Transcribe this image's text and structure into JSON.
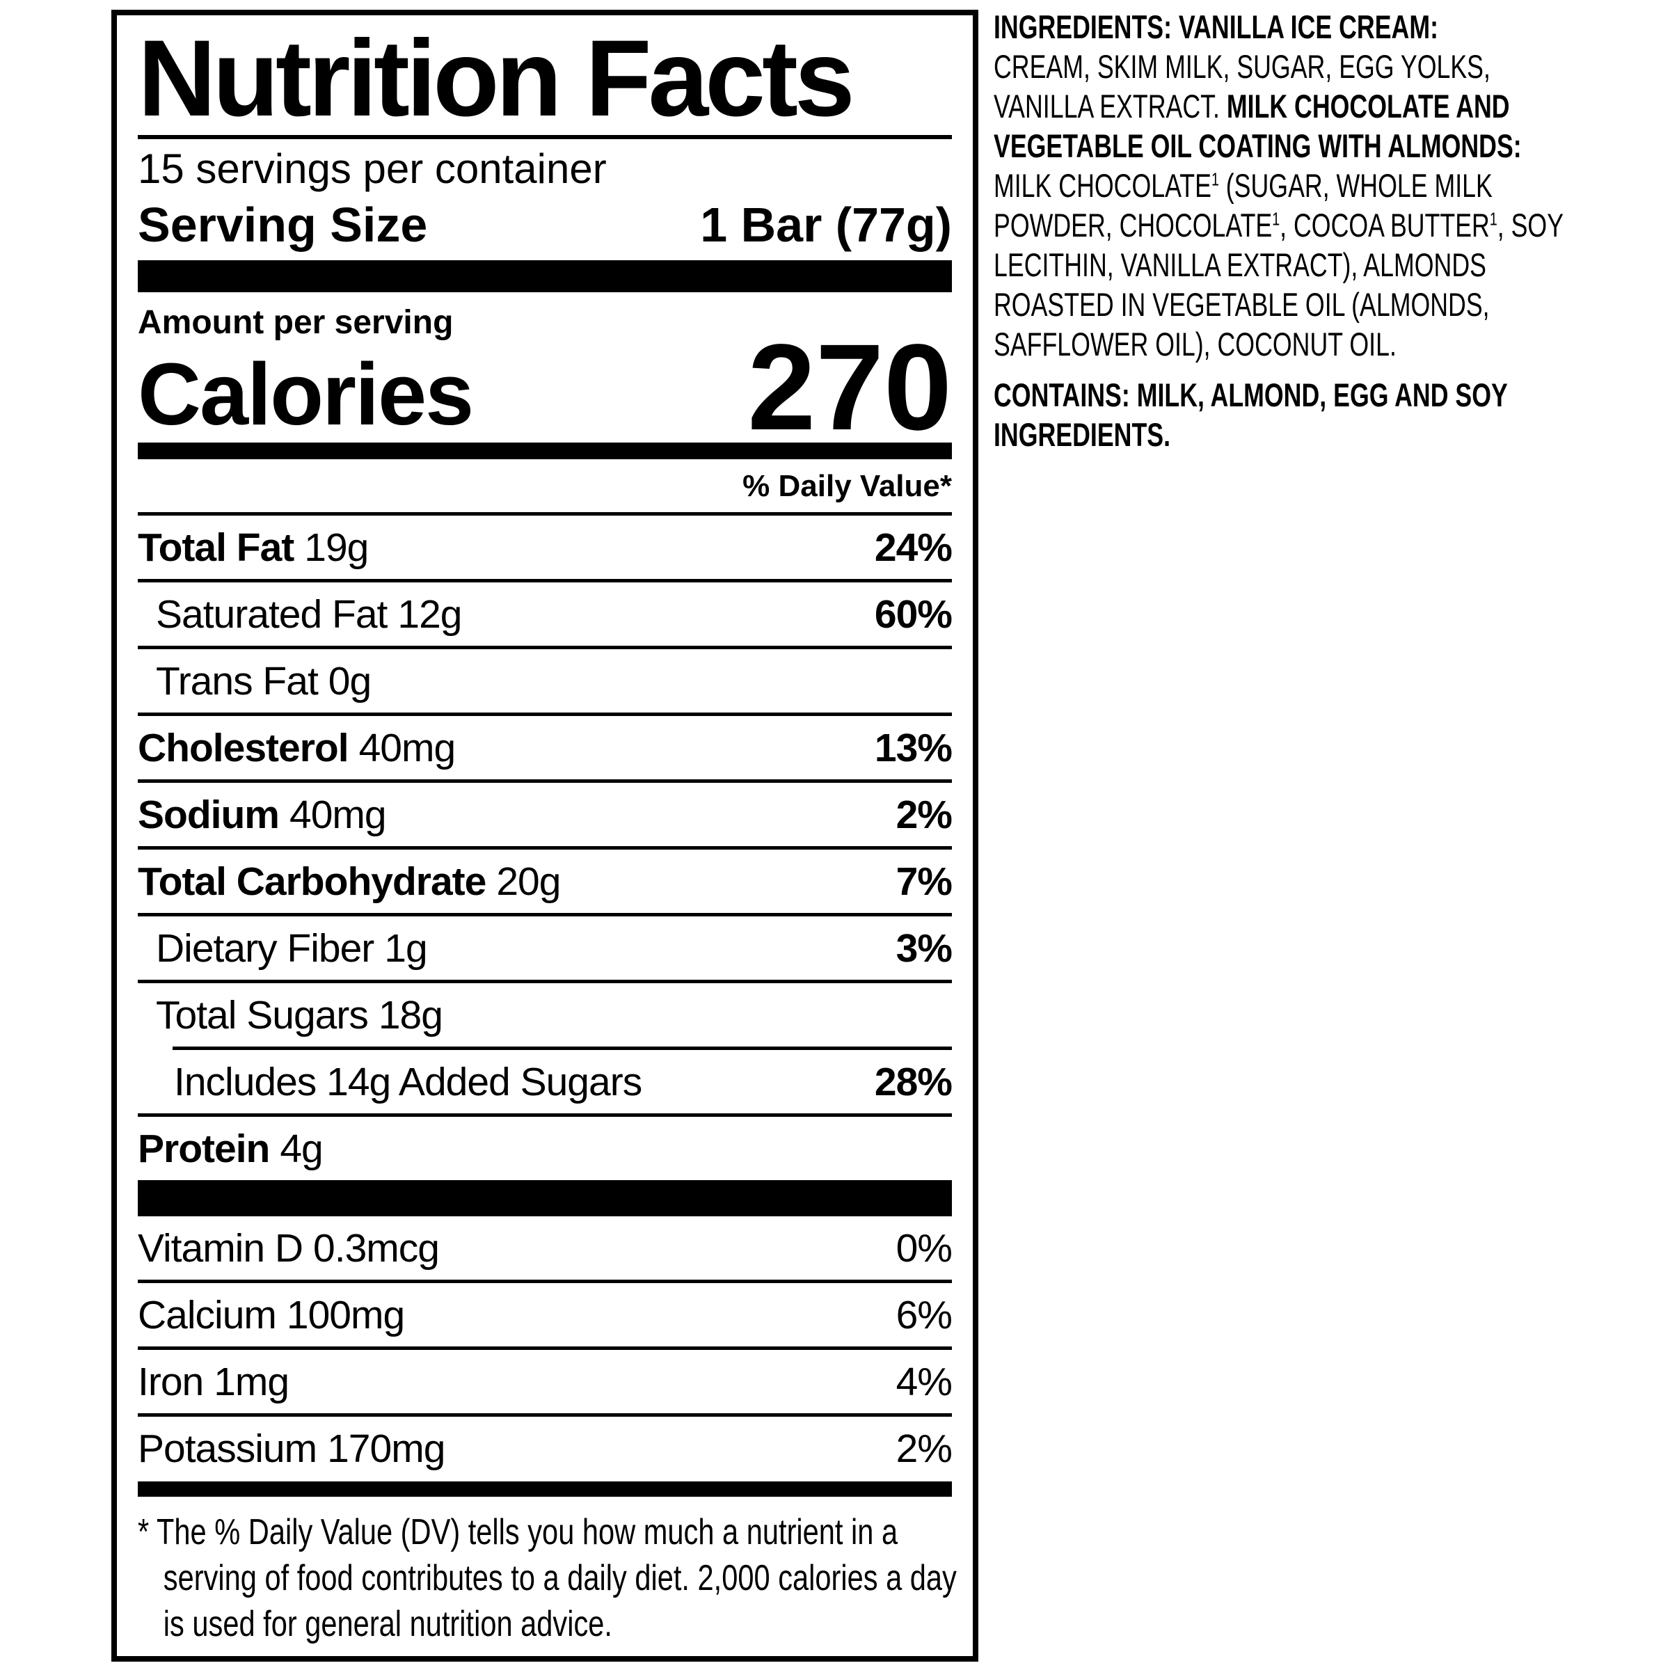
{
  "label": {
    "title": "Nutrition Facts",
    "servings_per_container": "15 servings per container",
    "serving_size_label": "Serving Size",
    "serving_size_value": "1 Bar (77g)",
    "amount_per_serving": "Amount per serving",
    "calories_label": "Calories",
    "calories_value": "270",
    "daily_value_header": "% Daily Value*",
    "rows": [
      {
        "name": "Total Fat",
        "amount": "19g",
        "pct": "24%",
        "name_bold": true,
        "pct_bold": true,
        "indent": 0,
        "sep_after": "full"
      },
      {
        "name": "Saturated Fat",
        "amount": "12g",
        "pct": "60%",
        "name_bold": false,
        "pct_bold": true,
        "indent": 1,
        "sep_after": "full"
      },
      {
        "name": "Trans Fat",
        "amount": "0g",
        "pct": "",
        "name_bold": false,
        "pct_bold": false,
        "indent": 1,
        "sep_after": "full"
      },
      {
        "name": "Cholesterol",
        "amount": "40mg",
        "pct": "13%",
        "name_bold": true,
        "pct_bold": true,
        "indent": 0,
        "sep_after": "full"
      },
      {
        "name": "Sodium",
        "amount": "40mg",
        "pct": "2%",
        "name_bold": true,
        "pct_bold": true,
        "indent": 0,
        "sep_after": "full"
      },
      {
        "name": "Total Carbohydrate",
        "amount": "20g",
        "pct": "7%",
        "name_bold": true,
        "pct_bold": true,
        "indent": 0,
        "sep_after": "full"
      },
      {
        "name": "Dietary Fiber",
        "amount": "1g",
        "pct": "3%",
        "name_bold": false,
        "pct_bold": true,
        "indent": 1,
        "sep_after": "full"
      },
      {
        "name": "Total Sugars",
        "amount": "18g",
        "pct": "",
        "name_bold": false,
        "pct_bold": false,
        "indent": 1,
        "sep_after": "indent2"
      },
      {
        "name": "Includes 14g Added Sugars",
        "amount": "",
        "pct": "28%",
        "name_bold": false,
        "pct_bold": true,
        "indent": 2,
        "sep_after": "full"
      },
      {
        "name": "Protein",
        "amount": "4g",
        "pct": "",
        "name_bold": true,
        "pct_bold": false,
        "indent": 0,
        "sep_after": "thick"
      }
    ],
    "vitamins": [
      {
        "name": "Vitamin D",
        "amount": "0.3mcg",
        "pct": "0%"
      },
      {
        "name": "Calcium",
        "amount": "100mg",
        "pct": "6%"
      },
      {
        "name": "Iron",
        "amount": "1mg",
        "pct": "4%"
      },
      {
        "name": "Potassium",
        "amount": "170mg",
        "pct": "2%"
      }
    ],
    "footnote": "* The % Daily Value (DV) tells you how much a nutrient in a serving of food contributes to a daily diet. 2,000 calories a day is used for general nutrition advice."
  },
  "ingredients": {
    "segments": [
      {
        "text": "INGREDIENTS: VANILLA ICE CREAM:\n",
        "bold": true
      },
      {
        "text": "CREAM, SKIM MILK, SUGAR, EGG YOLKS,\nVANILLA EXTRACT. ",
        "bold": false
      },
      {
        "text": "MILK CHOCOLATE AND\nVEGETABLE OIL COATING WITH ALMONDS:\n",
        "bold": true
      },
      {
        "text": "MILK CHOCOLATE",
        "bold": false
      },
      {
        "text": "1",
        "bold": false,
        "sup": true
      },
      {
        "text": " (SUGAR, WHOLE MILK\nPOWDER, CHOCOLATE",
        "bold": false
      },
      {
        "text": "1",
        "bold": false,
        "sup": true
      },
      {
        "text": ", COCOA BUTTER",
        "bold": false
      },
      {
        "text": "1",
        "bold": false,
        "sup": true
      },
      {
        "text": ", SOY\nLECITHIN, VANILLA EXTRACT), ALMONDS\nROASTED IN VEGETABLE OIL (ALMONDS,\nSAFFLOWER OIL), COCONUT OIL.",
        "bold": false
      }
    ],
    "contains": "CONTAINS: MILK, ALMOND, EGG AND SOY\nINGREDIENTS."
  }
}
